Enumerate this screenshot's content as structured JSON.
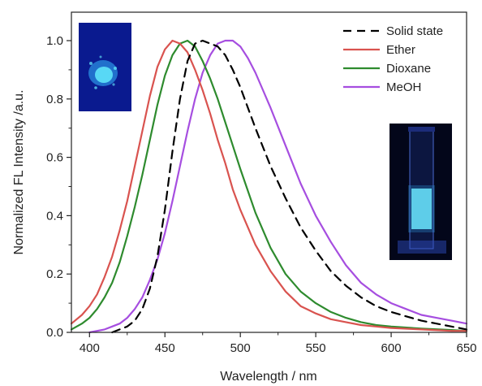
{
  "chart_data": {
    "type": "line",
    "xlabel": "Wavelength / nm",
    "ylabel": "Normalized FL Intensity /a.u.",
    "xlim": [
      388,
      650
    ],
    "ylim": [
      0,
      1.1
    ],
    "xticks": [
      400,
      450,
      500,
      550,
      600,
      650
    ],
    "yticks": [
      0.0,
      0.2,
      0.4,
      0.6,
      0.8,
      1.0
    ],
    "x_tick_labels": [
      "400",
      "450",
      "500",
      "550",
      "600",
      "650"
    ],
    "y_tick_labels": [
      "0.0",
      "0.2",
      "0.4",
      "0.6",
      "0.8",
      "1.0"
    ],
    "legend_position": "top-right",
    "grid": false,
    "series": [
      {
        "name": "Solid state",
        "color": "#000000",
        "dash": true,
        "x": [
          415,
          420,
          425,
          430,
          435,
          440,
          445,
          450,
          455,
          460,
          465,
          470,
          475,
          480,
          485,
          490,
          495,
          500,
          505,
          510,
          520,
          530,
          540,
          550,
          560,
          570,
          580,
          590,
          600,
          610,
          620,
          630,
          640,
          650
        ],
        "y": [
          0.0,
          0.01,
          0.02,
          0.04,
          0.08,
          0.15,
          0.26,
          0.42,
          0.62,
          0.8,
          0.93,
          0.99,
          1.0,
          0.99,
          0.98,
          0.95,
          0.9,
          0.84,
          0.77,
          0.7,
          0.57,
          0.46,
          0.36,
          0.28,
          0.21,
          0.16,
          0.12,
          0.09,
          0.07,
          0.055,
          0.04,
          0.03,
          0.02,
          0.01
        ]
      },
      {
        "name": "Ether",
        "color": "#d9534f",
        "dash": false,
        "x": [
          388,
          395,
          400,
          405,
          410,
          415,
          420,
          425,
          430,
          435,
          440,
          445,
          450,
          455,
          460,
          465,
          470,
          475,
          480,
          485,
          490,
          495,
          500,
          510,
          520,
          530,
          540,
          550,
          560,
          570,
          580,
          590,
          600,
          620,
          640,
          650
        ],
        "y": [
          0.03,
          0.06,
          0.09,
          0.13,
          0.19,
          0.26,
          0.35,
          0.45,
          0.57,
          0.69,
          0.81,
          0.91,
          0.97,
          1.0,
          0.99,
          0.96,
          0.9,
          0.83,
          0.75,
          0.66,
          0.58,
          0.49,
          0.42,
          0.3,
          0.21,
          0.14,
          0.09,
          0.065,
          0.045,
          0.035,
          0.025,
          0.02,
          0.015,
          0.01,
          0.005,
          0.005
        ]
      },
      {
        "name": "Dioxane",
        "color": "#2e8b2e",
        "dash": false,
        "x": [
          388,
          395,
          400,
          405,
          410,
          415,
          420,
          425,
          430,
          435,
          440,
          445,
          450,
          455,
          460,
          465,
          470,
          475,
          480,
          485,
          490,
          495,
          500,
          510,
          520,
          530,
          540,
          550,
          560,
          570,
          580,
          590,
          600,
          620,
          640,
          650
        ],
        "y": [
          0.01,
          0.03,
          0.05,
          0.08,
          0.12,
          0.17,
          0.24,
          0.33,
          0.43,
          0.54,
          0.66,
          0.78,
          0.88,
          0.95,
          0.99,
          1.0,
          0.98,
          0.93,
          0.87,
          0.8,
          0.72,
          0.64,
          0.56,
          0.41,
          0.29,
          0.2,
          0.14,
          0.1,
          0.07,
          0.05,
          0.035,
          0.025,
          0.02,
          0.013,
          0.008,
          0.005
        ]
      },
      {
        "name": "MeOH",
        "color": "#a64ee0",
        "dash": false,
        "x": [
          400,
          405,
          410,
          415,
          420,
          425,
          430,
          435,
          440,
          445,
          450,
          455,
          460,
          465,
          470,
          475,
          480,
          485,
          490,
          495,
          500,
          505,
          510,
          515,
          520,
          530,
          540,
          550,
          560,
          570,
          580,
          590,
          600,
          610,
          620,
          630,
          640,
          650
        ],
        "y": [
          0.0,
          0.005,
          0.01,
          0.02,
          0.03,
          0.05,
          0.08,
          0.12,
          0.18,
          0.25,
          0.34,
          0.45,
          0.57,
          0.69,
          0.8,
          0.89,
          0.95,
          0.99,
          1.0,
          1.0,
          0.98,
          0.94,
          0.89,
          0.83,
          0.77,
          0.64,
          0.51,
          0.4,
          0.31,
          0.23,
          0.17,
          0.13,
          0.1,
          0.08,
          0.06,
          0.05,
          0.04,
          0.03
        ]
      }
    ]
  },
  "photos": {
    "powder": {
      "colors": {
        "bg": "#0a1a8f",
        "glow": "#66f2ff"
      }
    },
    "cuvette": {
      "colors": {
        "bg": "#03061a",
        "glow": "#7ff7ff"
      }
    }
  }
}
